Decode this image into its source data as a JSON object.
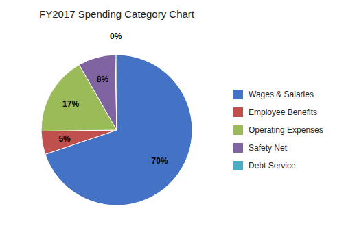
{
  "chart_data": {
    "type": "pie",
    "title": "FY2017 Spending Category Chart",
    "categories": [
      "Wages & Salaries",
      "Employee Benefits",
      "Operating Expenses",
      "Safety Net",
      "Debt Service"
    ],
    "values": [
      70,
      5,
      17,
      8,
      0.3
    ],
    "value_labels": [
      "70%",
      "5%",
      "17%",
      "8%",
      "0%"
    ],
    "colors": [
      "#4472C4",
      "#C0504D",
      "#9BBB59",
      "#8064A2",
      "#4BACC6"
    ],
    "data_labels": true,
    "legend": "right"
  }
}
